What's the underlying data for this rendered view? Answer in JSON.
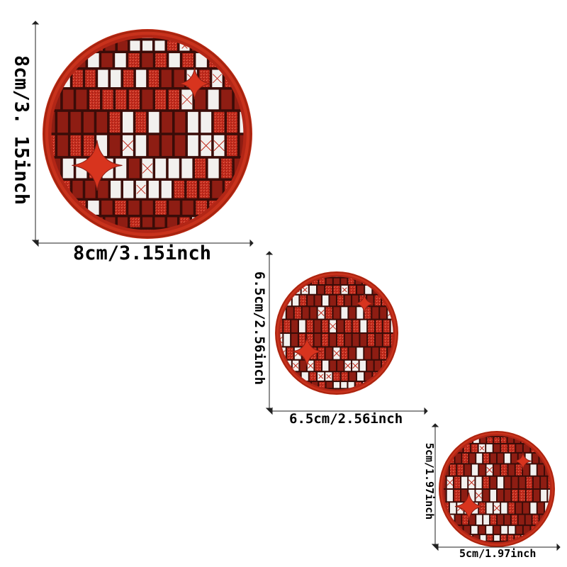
{
  "colors": {
    "background": "#ffffff",
    "rim": "#c8321c",
    "tile_dark": "#8e1d13",
    "tile_red": "#c02a1c",
    "tile_white": "#f2f0ee",
    "grout": "#3a0c08",
    "sparkle": "#d8341e"
  },
  "patches": {
    "large": {
      "width_label": "8cm/3.15inch",
      "height_label": "8cm/3. 15inch"
    },
    "medium": {
      "width_label": "6.5cm/2.56inch",
      "height_label": "6.5cm/2.56inch"
    },
    "small": {
      "width_label": "5cm/1.97inch",
      "height_label": "5cm/1.97inch"
    }
  }
}
